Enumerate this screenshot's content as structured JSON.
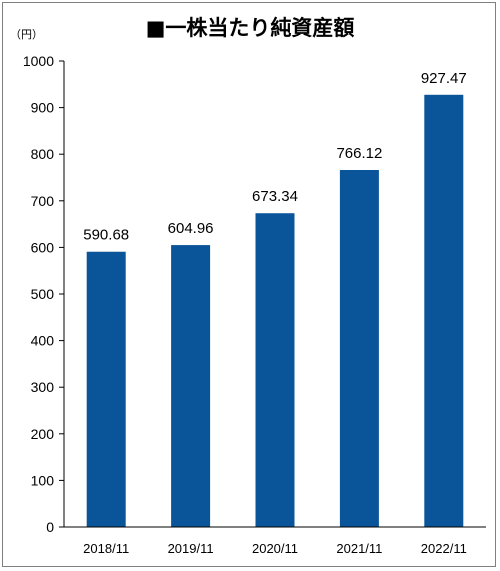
{
  "title": "■一株当たり純資産額",
  "unit_label": "（円）",
  "chart_data": {
    "type": "bar",
    "title": "■一株当たり純資産額",
    "ylabel": "（円）",
    "xlabel": "",
    "categories": [
      "2018/11",
      "2019/11",
      "2020/11",
      "2021/11",
      "2022/11"
    ],
    "values": [
      590.68,
      604.96,
      673.34,
      766.12,
      927.47
    ],
    "data_labels": [
      "590.68",
      "604.96",
      "673.34",
      "766.12",
      "927.47"
    ],
    "yticks": [
      0,
      100,
      200,
      300,
      400,
      500,
      600,
      700,
      800,
      900,
      1000
    ],
    "ylim": [
      0,
      1000
    ],
    "grid": false,
    "bar_color": "#0a5599"
  }
}
